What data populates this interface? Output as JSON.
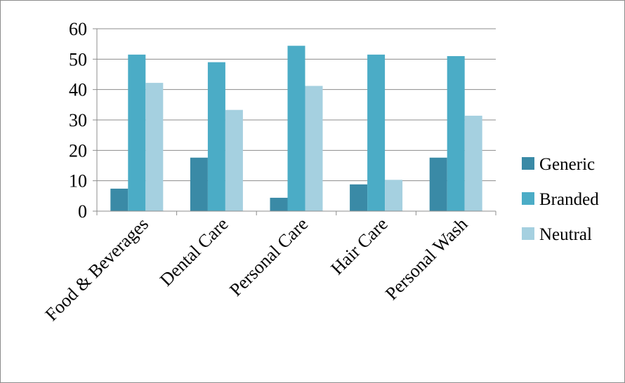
{
  "chart_data": {
    "type": "bar",
    "categories": [
      "Food & Beverages",
      "Dental Care",
      "Personal Care",
      "Hair Care",
      "Personal Wash"
    ],
    "series": [
      {
        "name": "Generic",
        "values": [
          7.4,
          17.6,
          4.4,
          8.8,
          17.6
        ],
        "color": "#3a8aa6"
      },
      {
        "name": "Branded",
        "values": [
          51.5,
          49.0,
          54.4,
          51.5,
          51.0
        ],
        "color": "#4bacc6"
      },
      {
        "name": "Neutral",
        "values": [
          42.2,
          33.3,
          41.2,
          10.3,
          31.4
        ],
        "color": "#a5d0e0"
      }
    ],
    "yticks": [
      "0",
      "10",
      "20",
      "30",
      "40",
      "50",
      "60"
    ],
    "ylim": [
      0,
      60
    ],
    "grid": true,
    "legend_position": "right",
    "title": "",
    "xlabel": "",
    "ylabel": ""
  }
}
